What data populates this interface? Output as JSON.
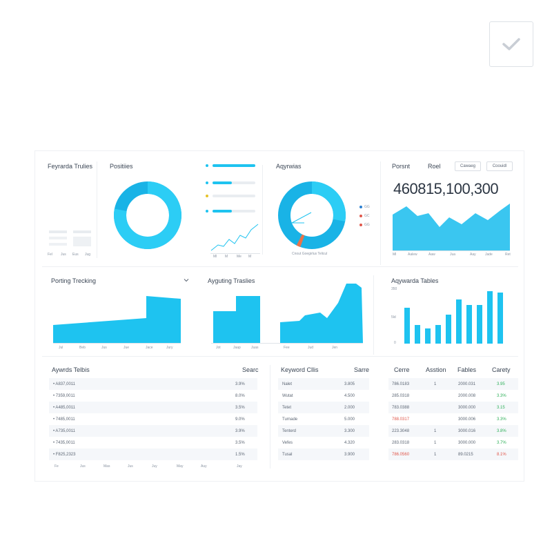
{
  "colors": {
    "accent": "#1ec3f0",
    "accent_dark": "#19b3e6",
    "positive": "#2fb05a",
    "negative": "#e0564a",
    "orange": "#e8734a",
    "yellow": "#e6c229"
  },
  "card_keyword_trends": {
    "title": "Feyrarda Trulies",
    "x_ticks": [
      "Fel",
      "Jus",
      "Eus",
      "Jug"
    ]
  },
  "card_positions": {
    "title": "Positiies",
    "donut_fraction": 0.78
  },
  "card_progress": {
    "x_ticks": [
      "Ml",
      "M",
      "Me",
      "M"
    ],
    "bars": [
      {
        "fraction": 1.0,
        "dot": "accent"
      },
      {
        "fraction": 0.45,
        "dot": "accent"
      },
      {
        "fraction": 0.0,
        "dot": "yellow"
      },
      {
        "fraction": 0.45,
        "dot": "accent"
      }
    ]
  },
  "card_ayrwrias": {
    "title": "Aqyrwias",
    "legend": [
      "GG",
      "GC",
      "GG"
    ],
    "legend_colors": [
      "#2a7fd0",
      "#e0564a",
      "#e0564a"
    ],
    "footnote": "Cnout Goegirlus   Telicul"
  },
  "card_percent": {
    "title": "Porsnt",
    "tab2": "Roel",
    "button_1": "Cawaeg",
    "button_2": "Coouidl",
    "big_number": "460815,100,300",
    "x_ticks": [
      "Ml",
      "Aalew",
      "Aaw",
      "Jua",
      "Aay",
      "Jade",
      "Ret"
    ]
  },
  "card_posting_tracking": {
    "title": "Porting Trecking",
    "menu_icon": "chevron-down-icon",
    "x_ticks": [
      "Jul",
      "Beb",
      "Jus",
      "Jue",
      "Jace",
      "Jury"
    ]
  },
  "card_ayguting": {
    "title": "Ayguting Traslies",
    "x_ticks": [
      "Jot",
      "Jaap",
      "Juas",
      "Fee",
      "Jud",
      "Jen"
    ]
  },
  "card_ayywarda": {
    "title": "Aqywarda Tables",
    "y_ticks": [
      "350",
      "5ld",
      "0"
    ]
  },
  "table_left": {
    "title": "Aywrds Telbis",
    "col2": "Searc",
    "rows": [
      {
        "key": "• A837,0011",
        "val": "3.9%"
      },
      {
        "key": "• 7359,0011",
        "val": "8.0%"
      },
      {
        "key": "• A485,0011",
        "val": "3.5%"
      },
      {
        "key": "• 7485,0011",
        "val": "9.0%"
      },
      {
        "key": "• A735,0011",
        "val": "3.9%"
      },
      {
        "key": "• 7435,0011",
        "val": "3.5%"
      },
      {
        "key": "• F825,2323",
        "val": "1.5%"
      }
    ],
    "x_ticks": [
      "Fe",
      "Jus",
      "Mas",
      "Jus",
      "Juy",
      "May",
      "Auy",
      "Jay"
    ]
  },
  "table_keyword": {
    "title": "Keyword Cllis",
    "col2": "Sarre",
    "rows": [
      {
        "key": "Nalet",
        "val": "3.805"
      },
      {
        "key": "Wutat",
        "val": "4.500"
      },
      {
        "key": "Tetet",
        "val": "2.000"
      },
      {
        "key": "Turnade",
        "val": "5.000"
      },
      {
        "key": "Tenterd",
        "val": "3.300"
      },
      {
        "key": "Vefes",
        "val": "4.320"
      },
      {
        "key": "Tusal",
        "val": "3.900"
      }
    ]
  },
  "table_right": {
    "headers": [
      "Cerre",
      "Asstion",
      "Fables",
      "Carety"
    ],
    "rows": [
      {
        "a": "786.0183",
        "b": "1",
        "c": "2000.031",
        "d": "3.95",
        "a_neg": false,
        "d_state": "pos"
      },
      {
        "a": "285.0318",
        "b": "",
        "c": "2000.008",
        "d": "3.3%",
        "a_neg": false,
        "d_state": "pos"
      },
      {
        "a": "783.0388",
        "b": "",
        "c": "3000.000",
        "d": "3.15",
        "a_neg": false,
        "d_state": "pos"
      },
      {
        "a": "788.0317",
        "b": "",
        "c": "3000.006",
        "d": "3.3%",
        "a_neg": true,
        "d_state": "pos"
      },
      {
        "a": "223.3048",
        "b": "1",
        "c": "3000.016",
        "d": "3.8%",
        "a_neg": false,
        "d_state": "pos"
      },
      {
        "a": "283.0318",
        "b": "1",
        "c": "3000.000",
        "d": "3.7%",
        "a_neg": false,
        "d_state": "pos"
      },
      {
        "a": "786.0560",
        "b": "1",
        "c": "89.0215",
        "d": "8.1%",
        "a_neg": true,
        "d_state": "neg"
      }
    ]
  },
  "checkbox_icon": "check-icon"
}
